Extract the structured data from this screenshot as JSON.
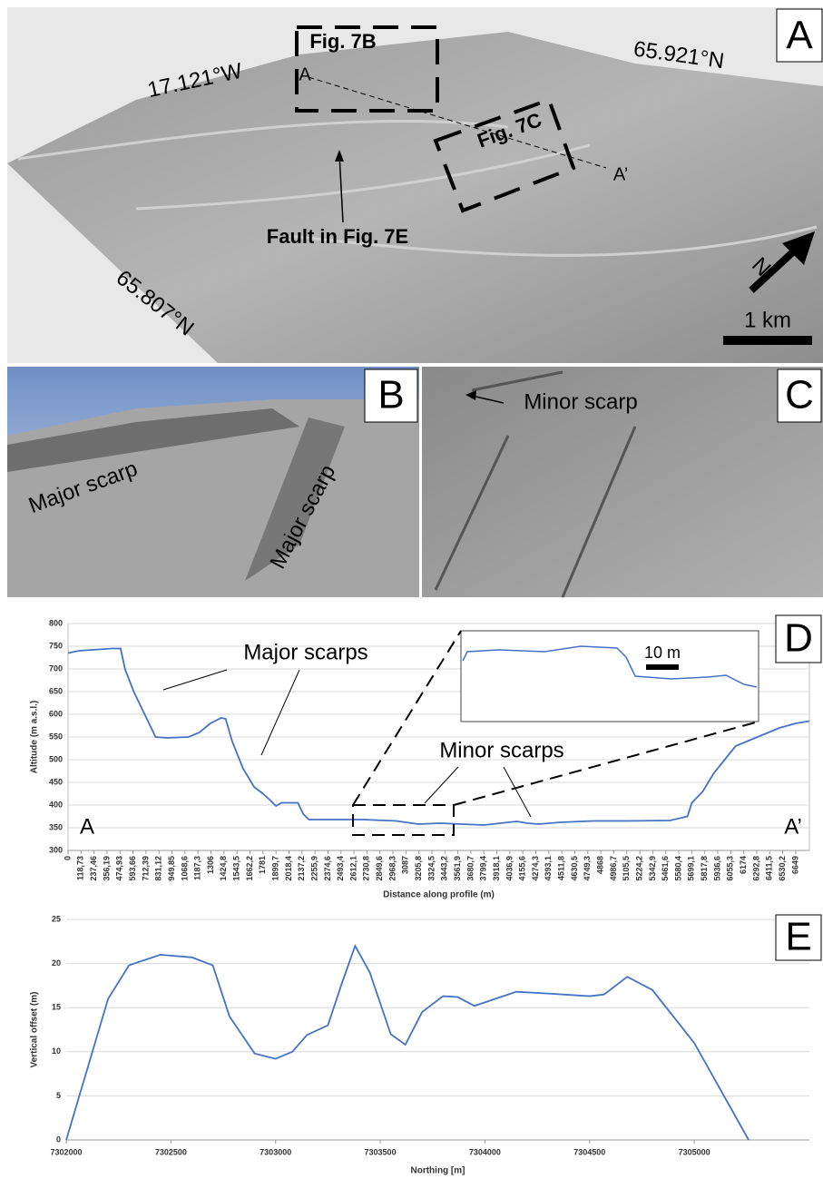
{
  "panels": {
    "A": {
      "label": "A",
      "boxes": [
        "Fig. 7B",
        "Fig. 7C"
      ],
      "coords": [
        "17.121°W",
        "65.921°N",
        "65.807°N"
      ],
      "fault": "Fault in Fig. 7E",
      "profile_ends": [
        "A",
        "A’"
      ],
      "north": "N",
      "scale": "1 km"
    },
    "B": {
      "label": "B",
      "texts": [
        "Major scarp",
        "Major scarp"
      ]
    },
    "C": {
      "label": "C",
      "texts": [
        "Minor scarp"
      ]
    }
  },
  "chart_data": [
    {
      "type": "line",
      "panel_label": "D",
      "x_label": "Distance along profile (m)",
      "y_label": "Altitude (m a.s.l.)",
      "annotations": [
        "Major scarps",
        "Minor scarps",
        "A",
        "A’"
      ],
      "inset_scale": "10 m",
      "color": "#4472c4",
      "grid": true,
      "x": [
        0,
        100,
        400,
        480,
        520,
        600,
        700,
        800,
        900,
        1100,
        1200,
        1300,
        1400,
        1440,
        1500,
        1600,
        1700,
        1780,
        1850,
        1900,
        1950,
        2100,
        2150,
        2200,
        2500,
        2700,
        3000,
        3200,
        3400,
        3600,
        3800,
        4100,
        4200,
        4300,
        4500,
        4800,
        5100,
        5500,
        5660,
        5700,
        5800,
        5900,
        6000,
        6100,
        6300,
        6500,
        6650,
        6774
      ],
      "values": [
        735,
        740,
        745,
        745,
        700,
        650,
        600,
        550,
        548,
        550,
        560,
        580,
        592,
        590,
        540,
        480,
        440,
        425,
        410,
        398,
        405,
        405,
        380,
        368,
        368,
        368,
        365,
        358,
        360,
        358,
        356,
        364,
        360,
        358,
        362,
        365,
        365,
        366,
        375,
        405,
        430,
        470,
        500,
        530,
        550,
        570,
        580,
        585
      ],
      "xlim": [
        0,
        6774
      ],
      "ylim": [
        300,
        800
      ],
      "yticks": [
        300,
        350,
        400,
        450,
        500,
        550,
        600,
        650,
        700,
        750,
        800
      ],
      "xticks": [
        0,
        {
          "value": 118.73,
          "label": "118,73"
        },
        {
          "value": 237.46,
          "label": "237,46"
        },
        {
          "value": 356.19,
          "label": "356,19"
        },
        {
          "value": 474.93,
          "label": "474,93"
        },
        {
          "value": 593.66,
          "label": "593,66"
        },
        {
          "value": 712.39,
          "label": "712,39"
        },
        {
          "value": 831.12,
          "label": "831,12"
        },
        {
          "value": 949.85,
          "label": "949,85"
        },
        {
          "value": 1068.6,
          "label": "1068,6"
        },
        {
          "value": 1187.3,
          "label": "1187,3"
        },
        1306,
        {
          "value": 1424.8,
          "label": "1424,8"
        },
        {
          "value": 1543.5,
          "label": "1543,5"
        },
        {
          "value": 1662.2,
          "label": "1662,2"
        },
        1781,
        {
          "value": 1899.7,
          "label": "1899,7"
        },
        {
          "value": 2018.4,
          "label": "2018,4"
        },
        {
          "value": 2137.2,
          "label": "2137,2"
        },
        {
          "value": 2255.9,
          "label": "2255,9"
        },
        {
          "value": 2374.6,
          "label": "2374,6"
        },
        {
          "value": 2493.4,
          "label": "2493,4"
        },
        {
          "value": 2612.1,
          "label": "2612,1"
        },
        {
          "value": 2730.8,
          "label": "2730,8"
        },
        {
          "value": 2849.6,
          "label": "2849,6"
        },
        {
          "value": 2968.3,
          "label": "2968,3"
        },
        3087,
        {
          "value": 3205.8,
          "label": "3205,8"
        },
        {
          "value": 3324.5,
          "label": "3324,5"
        },
        {
          "value": 3443.2,
          "label": "3443,2"
        },
        {
          "value": 3561.9,
          "label": "3561,9"
        },
        {
          "value": 3680.7,
          "label": "3680,7"
        },
        {
          "value": 3799.4,
          "label": "3799,4"
        },
        {
          "value": 3918.1,
          "label": "3918,1"
        },
        {
          "value": 4036.9,
          "label": "4036,9"
        },
        {
          "value": 4155.6,
          "label": "4155,6"
        },
        {
          "value": 4274.3,
          "label": "4274,3"
        },
        {
          "value": 4393.1,
          "label": "4393,1"
        },
        {
          "value": 4511.8,
          "label": "4511,8"
        },
        {
          "value": 4630.5,
          "label": "4630,5"
        },
        {
          "value": 4749.3,
          "label": "4749,3"
        },
        4868,
        {
          "value": 4986.7,
          "label": "4986,7"
        },
        {
          "value": 5105.5,
          "label": "5105,5"
        },
        {
          "value": 5224.2,
          "label": "5224,2"
        },
        {
          "value": 5342.9,
          "label": "5342,9"
        },
        {
          "value": 5461.6,
          "label": "5461,6"
        },
        {
          "value": 5580.4,
          "label": "5580,4"
        },
        {
          "value": 5699.1,
          "label": "5699,1"
        },
        {
          "value": 5817.8,
          "label": "5817,8"
        },
        {
          "value": 5936.6,
          "label": "5936,6"
        },
        {
          "value": 6055.3,
          "label": "6055,3"
        },
        6174,
        {
          "value": 6292.8,
          "label": "6292,8"
        },
        {
          "value": 6411.5,
          "label": "6411,5"
        },
        {
          "value": 6530.2,
          "label": "6530,2"
        },
        6649
      ]
    },
    {
      "type": "line",
      "panel_label": "E",
      "x_label": "Northing [m]",
      "y_label": "Vertical offset (m)",
      "color": "#4472c4",
      "grid": true,
      "x": [
        7302000,
        7302100,
        7302200,
        7302300,
        7302450,
        7302600,
        7302700,
        7302780,
        7302900,
        7303000,
        7303080,
        7303150,
        7303250,
        7303320,
        7303380,
        7303450,
        7303550,
        7303620,
        7303700,
        7303800,
        7303870,
        7303950,
        7304000,
        7304150,
        7304300,
        7304500,
        7304570,
        7304680,
        7304800,
        7305000,
        7305260
      ],
      "values": [
        0,
        8,
        16,
        19.8,
        21,
        20.7,
        19.8,
        14,
        9.8,
        9.2,
        10,
        11.9,
        13,
        18,
        22,
        19,
        12,
        10.8,
        14.5,
        16.3,
        16.2,
        15.2,
        15.6,
        16.8,
        16.6,
        16.3,
        16.5,
        18.5,
        17,
        11,
        0
      ],
      "xlim": [
        7302000,
        7305550
      ],
      "ylim": [
        0,
        25
      ],
      "yticks": [
        0,
        5,
        10,
        15,
        20,
        25
      ],
      "xticks": [
        7302000,
        7302500,
        7303000,
        7303500,
        7304000,
        7304500,
        7305000
      ]
    }
  ]
}
